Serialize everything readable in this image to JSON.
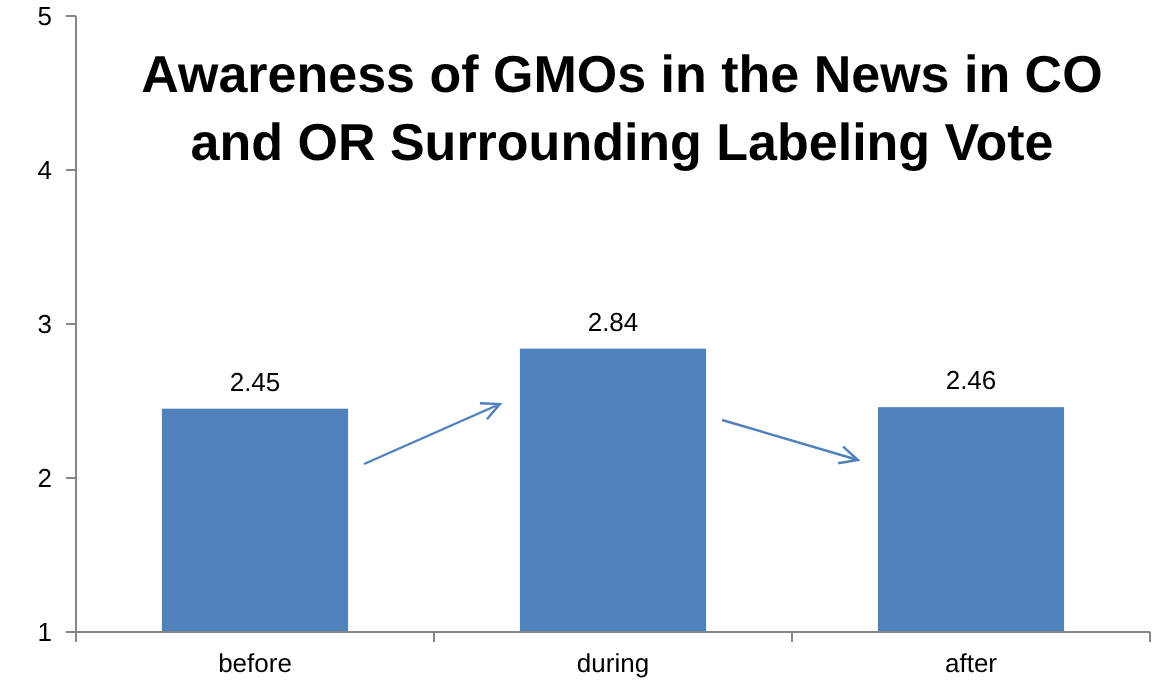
{
  "chart_data": {
    "type": "bar",
    "title": "Awareness of GMOs in the News in CO and OR Surrounding Labeling Vote",
    "categories": [
      "before",
      "during",
      "after"
    ],
    "values": [
      2.45,
      2.84,
      2.46
    ],
    "color": "#4f81bd",
    "ylim": [
      1,
      5
    ],
    "yticks": [
      1,
      2,
      3,
      4,
      5
    ],
    "data_labels": true
  }
}
